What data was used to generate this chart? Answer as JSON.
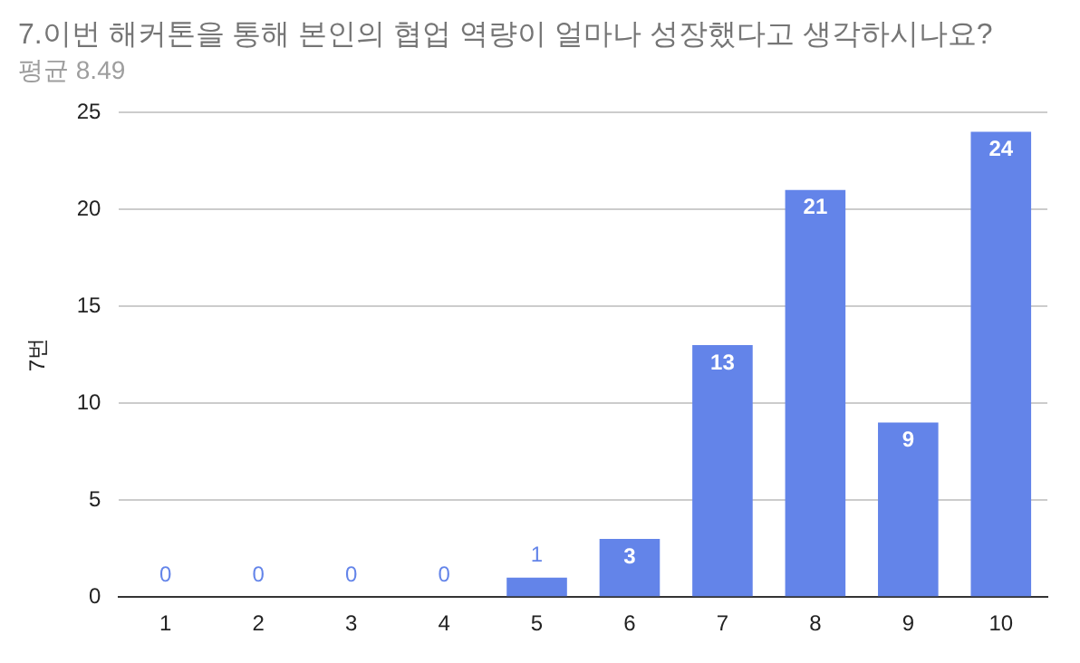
{
  "chart_data": {
    "type": "bar",
    "title": "7.이번 해커톤을 통해 본인의 협업 역량이 얼마나 성장했다고 생각하시나요?",
    "subtitle": "평균 8.49",
    "ylabel": "7번",
    "categories": [
      "1",
      "2",
      "3",
      "4",
      "5",
      "6",
      "7",
      "8",
      "9",
      "10"
    ],
    "values": [
      0,
      0,
      0,
      0,
      1,
      3,
      13,
      21,
      9,
      24
    ],
    "color": "#6384e9",
    "ylim": [
      0,
      25
    ],
    "yticks": [
      0,
      5,
      10,
      15,
      20,
      25
    ],
    "grid": "y",
    "legend": false,
    "data_labels": true
  }
}
